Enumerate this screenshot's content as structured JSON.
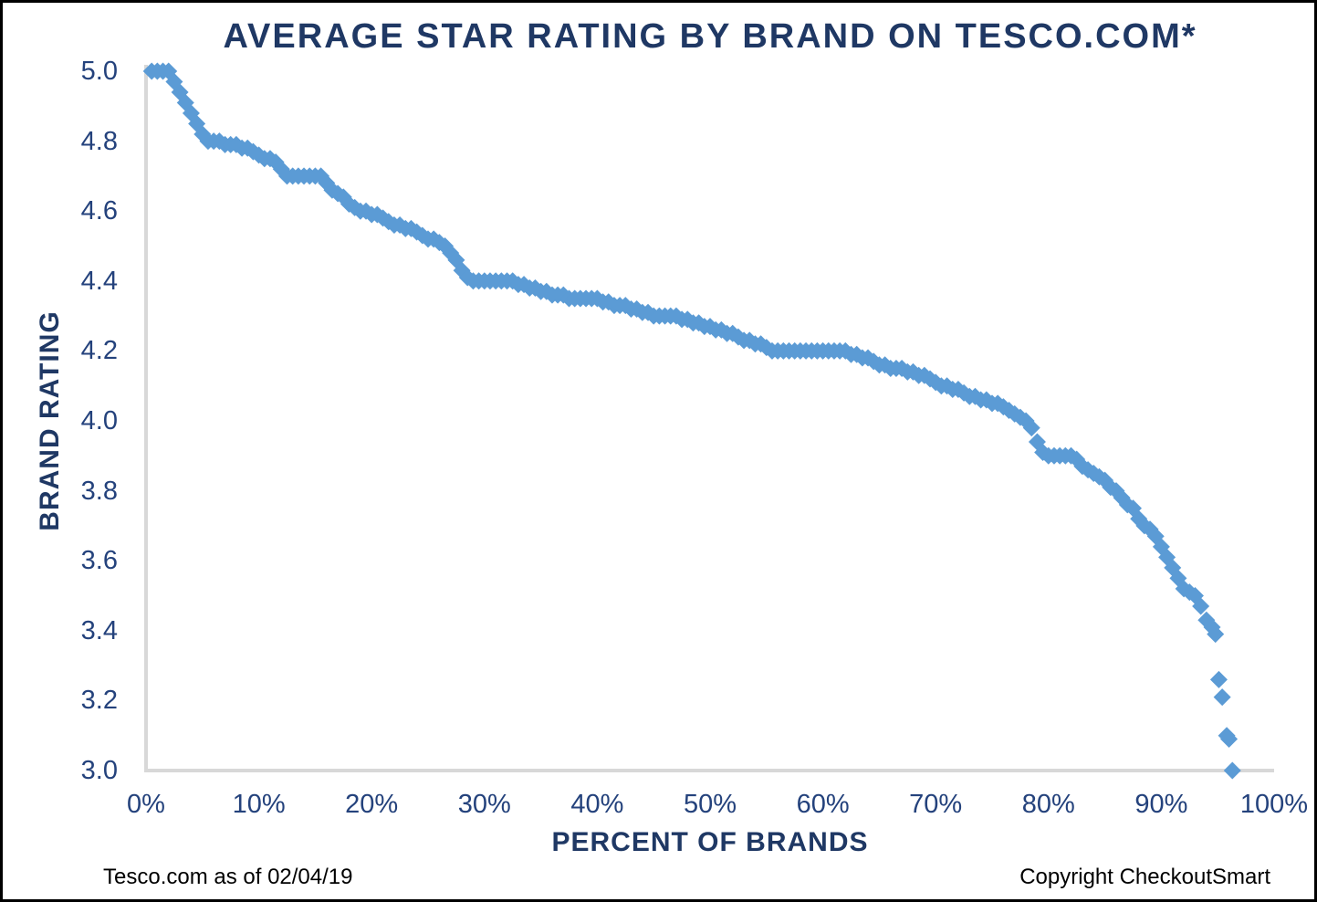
{
  "chart": {
    "title": "AVERAGE STAR RATING BY BRAND ON TESCO.COM*",
    "x_axis": {
      "label": "PERCENT OF BRANDS",
      "tick_labels": [
        "0%",
        "10%",
        "20%",
        "30%",
        "40%",
        "50%",
        "60%",
        "70%",
        "80%",
        "90%",
        "100%"
      ]
    },
    "y_axis": {
      "label": "BRAND RATING",
      "tick_labels": [
        "5.0",
        "4.8",
        "4.6",
        "4.4",
        "4.2",
        "4.0",
        "3.8",
        "3.6",
        "3.4",
        "3.2",
        "3.0"
      ]
    },
    "footnote_left": "Tesco.com as of 02/04/19",
    "footnote_right": "Copyright CheckoutSmart",
    "colors": {
      "title_text": "#1F3864",
      "tick_text": "#24427C",
      "axis_line": "#D8D8D8",
      "marker": "#5B9BD5",
      "footnote_text": "#000000",
      "background": "#FFFFFF",
      "frame_border": "#000000"
    }
  },
  "chart_data": {
    "type": "scatter",
    "title": "AVERAGE STAR RATING BY BRAND ON TESCO.COM*",
    "xlabel": "PERCENT OF BRANDS",
    "ylabel": "BRAND RATING",
    "xlim": [
      0,
      100
    ],
    "ylim": [
      3.0,
      5.0
    ],
    "x_tick_step_percent": 10,
    "y_tick_step": 0.2,
    "grid": false,
    "legend": false,
    "marker": "diamond",
    "marker_color": "#5B9BD5",
    "points": [
      [
        0.5,
        5.0
      ],
      [
        1.0,
        5.0
      ],
      [
        1.5,
        5.0
      ],
      [
        2.0,
        5.0
      ],
      [
        2.5,
        4.97
      ],
      [
        3.0,
        4.94
      ],
      [
        3.5,
        4.91
      ],
      [
        4.0,
        4.88
      ],
      [
        4.5,
        4.85
      ],
      [
        5.0,
        4.82
      ],
      [
        5.5,
        4.8
      ],
      [
        6.0,
        4.8
      ],
      [
        6.5,
        4.8
      ],
      [
        7.0,
        4.79
      ],
      [
        7.5,
        4.79
      ],
      [
        8.0,
        4.79
      ],
      [
        8.5,
        4.78
      ],
      [
        9.0,
        4.78
      ],
      [
        9.5,
        4.77
      ],
      [
        10.0,
        4.76
      ],
      [
        10.5,
        4.75
      ],
      [
        11.0,
        4.75
      ],
      [
        11.5,
        4.74
      ],
      [
        12.0,
        4.72
      ],
      [
        12.5,
        4.7
      ],
      [
        13.0,
        4.7
      ],
      [
        13.5,
        4.7
      ],
      [
        14.0,
        4.7
      ],
      [
        14.5,
        4.7
      ],
      [
        15.0,
        4.7
      ],
      [
        15.5,
        4.7
      ],
      [
        16.0,
        4.68
      ],
      [
        16.5,
        4.66
      ],
      [
        17.0,
        4.65
      ],
      [
        17.5,
        4.64
      ],
      [
        18.0,
        4.62
      ],
      [
        18.5,
        4.61
      ],
      [
        19.0,
        4.6
      ],
      [
        19.5,
        4.6
      ],
      [
        20.0,
        4.59
      ],
      [
        20.5,
        4.59
      ],
      [
        21.0,
        4.58
      ],
      [
        21.5,
        4.57
      ],
      [
        22.0,
        4.56
      ],
      [
        22.5,
        4.56
      ],
      [
        23.0,
        4.55
      ],
      [
        23.5,
        4.55
      ],
      [
        24.0,
        4.54
      ],
      [
        24.5,
        4.53
      ],
      [
        25.0,
        4.52
      ],
      [
        25.5,
        4.52
      ],
      [
        26.0,
        4.51
      ],
      [
        26.5,
        4.5
      ],
      [
        27.0,
        4.48
      ],
      [
        27.5,
        4.46
      ],
      [
        28.0,
        4.43
      ],
      [
        28.5,
        4.41
      ],
      [
        29.0,
        4.4
      ],
      [
        29.5,
        4.4
      ],
      [
        30.0,
        4.4
      ],
      [
        30.5,
        4.4
      ],
      [
        31.0,
        4.4
      ],
      [
        31.5,
        4.4
      ],
      [
        32.0,
        4.4
      ],
      [
        32.5,
        4.4
      ],
      [
        33.0,
        4.39
      ],
      [
        33.5,
        4.39
      ],
      [
        34.0,
        4.38
      ],
      [
        34.5,
        4.38
      ],
      [
        35.0,
        4.37
      ],
      [
        35.5,
        4.37
      ],
      [
        36.0,
        4.36
      ],
      [
        36.5,
        4.36
      ],
      [
        37.0,
        4.36
      ],
      [
        37.5,
        4.35
      ],
      [
        38.0,
        4.35
      ],
      [
        38.5,
        4.35
      ],
      [
        39.0,
        4.35
      ],
      [
        39.5,
        4.35
      ],
      [
        40.0,
        4.35
      ],
      [
        40.5,
        4.34
      ],
      [
        41.0,
        4.34
      ],
      [
        41.5,
        4.33
      ],
      [
        42.0,
        4.33
      ],
      [
        42.5,
        4.33
      ],
      [
        43.0,
        4.32
      ],
      [
        43.5,
        4.32
      ],
      [
        44.0,
        4.31
      ],
      [
        44.5,
        4.31
      ],
      [
        45.0,
        4.3
      ],
      [
        45.5,
        4.3
      ],
      [
        46.0,
        4.3
      ],
      [
        46.5,
        4.3
      ],
      [
        47.0,
        4.3
      ],
      [
        47.5,
        4.29
      ],
      [
        48.0,
        4.29
      ],
      [
        48.5,
        4.28
      ],
      [
        49.0,
        4.28
      ],
      [
        49.5,
        4.27
      ],
      [
        50.0,
        4.27
      ],
      [
        50.5,
        4.26
      ],
      [
        51.0,
        4.26
      ],
      [
        51.5,
        4.25
      ],
      [
        52.0,
        4.25
      ],
      [
        52.5,
        4.24
      ],
      [
        53.0,
        4.23
      ],
      [
        53.5,
        4.23
      ],
      [
        54.0,
        4.22
      ],
      [
        54.5,
        4.22
      ],
      [
        55.0,
        4.21
      ],
      [
        55.5,
        4.2
      ],
      [
        56.0,
        4.2
      ],
      [
        56.5,
        4.2
      ],
      [
        57.0,
        4.2
      ],
      [
        57.5,
        4.2
      ],
      [
        58.0,
        4.2
      ],
      [
        58.5,
        4.2
      ],
      [
        59.0,
        4.2
      ],
      [
        59.5,
        4.2
      ],
      [
        60.0,
        4.2
      ],
      [
        60.5,
        4.2
      ],
      [
        61.0,
        4.2
      ],
      [
        61.5,
        4.2
      ],
      [
        62.0,
        4.2
      ],
      [
        62.5,
        4.19
      ],
      [
        63.0,
        4.19
      ],
      [
        63.5,
        4.18
      ],
      [
        64.0,
        4.18
      ],
      [
        64.5,
        4.17
      ],
      [
        65.0,
        4.16
      ],
      [
        65.5,
        4.16
      ],
      [
        66.0,
        4.15
      ],
      [
        66.5,
        4.15
      ],
      [
        67.0,
        4.15
      ],
      [
        67.5,
        4.14
      ],
      [
        68.0,
        4.14
      ],
      [
        68.5,
        4.13
      ],
      [
        69.0,
        4.13
      ],
      [
        69.5,
        4.12
      ],
      [
        70.0,
        4.11
      ],
      [
        70.5,
        4.1
      ],
      [
        71.0,
        4.1
      ],
      [
        71.5,
        4.09
      ],
      [
        72.0,
        4.09
      ],
      [
        72.5,
        4.08
      ],
      [
        73.0,
        4.07
      ],
      [
        73.5,
        4.07
      ],
      [
        74.0,
        4.06
      ],
      [
        74.5,
        4.06
      ],
      [
        75.0,
        4.05
      ],
      [
        75.5,
        4.05
      ],
      [
        76.0,
        4.04
      ],
      [
        76.5,
        4.03
      ],
      [
        77.0,
        4.02
      ],
      [
        77.5,
        4.01
      ],
      [
        78.0,
        4.0
      ],
      [
        78.5,
        3.98
      ],
      [
        79.0,
        3.94
      ],
      [
        79.5,
        3.91
      ],
      [
        80.0,
        3.9
      ],
      [
        80.5,
        3.9
      ],
      [
        81.0,
        3.9
      ],
      [
        81.5,
        3.9
      ],
      [
        82.0,
        3.9
      ],
      [
        82.5,
        3.89
      ],
      [
        83.0,
        3.87
      ],
      [
        83.5,
        3.86
      ],
      [
        84.0,
        3.85
      ],
      [
        84.5,
        3.84
      ],
      [
        85.0,
        3.83
      ],
      [
        85.5,
        3.81
      ],
      [
        86.0,
        3.8
      ],
      [
        86.5,
        3.78
      ],
      [
        87.0,
        3.76
      ],
      [
        87.5,
        3.75
      ],
      [
        88.0,
        3.72
      ],
      [
        88.5,
        3.7
      ],
      [
        89.0,
        3.69
      ],
      [
        89.5,
        3.67
      ],
      [
        90.0,
        3.64
      ],
      [
        90.5,
        3.61
      ],
      [
        91.0,
        3.58
      ],
      [
        91.5,
        3.55
      ],
      [
        92.0,
        3.52
      ],
      [
        92.5,
        3.51
      ],
      [
        93.0,
        3.5
      ],
      [
        93.5,
        3.47
      ],
      [
        94.0,
        3.43
      ],
      [
        94.5,
        3.41
      ],
      [
        94.8,
        3.39
      ],
      [
        95.1,
        3.26
      ],
      [
        95.4,
        3.21
      ],
      [
        95.8,
        3.1
      ],
      [
        96.0,
        3.09
      ],
      [
        96.3,
        3.0
      ]
    ]
  }
}
